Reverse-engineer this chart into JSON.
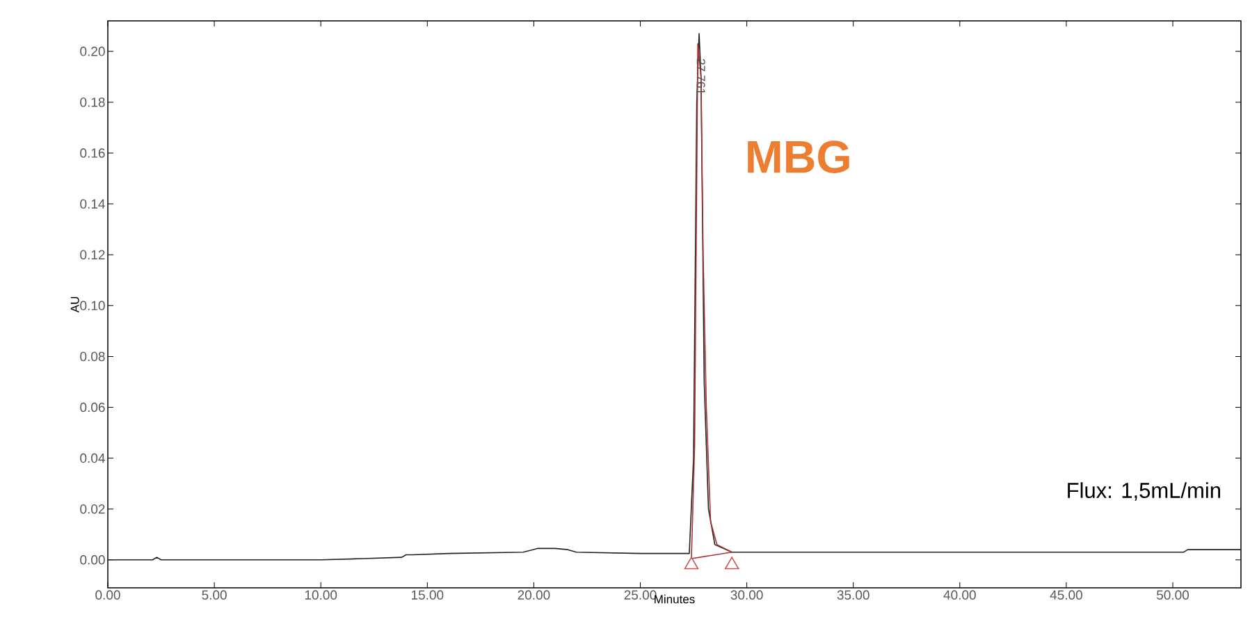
{
  "chart_data": {
    "type": "line",
    "xlabel": "Minutes",
    "ylabel": "AU",
    "xlim": [
      0,
      53.2
    ],
    "ylim": [
      -0.011,
      0.212
    ],
    "xticks": [
      {
        "value": 0,
        "label": "0.00"
      },
      {
        "value": 5,
        "label": "5.00"
      },
      {
        "value": 10,
        "label": "10.00"
      },
      {
        "value": 15,
        "label": "15.00"
      },
      {
        "value": 20,
        "label": "20.00"
      },
      {
        "value": 25,
        "label": "25.00"
      },
      {
        "value": 30,
        "label": "30.00"
      },
      {
        "value": 35,
        "label": "35.00"
      },
      {
        "value": 40,
        "label": "40.00"
      },
      {
        "value": 45,
        "label": "45.00"
      },
      {
        "value": 50,
        "label": "50.00"
      }
    ],
    "yticks": [
      {
        "value": 0,
        "label": "0.00"
      },
      {
        "value": 0.02,
        "label": "0.02"
      },
      {
        "value": 0.04,
        "label": "0.04"
      },
      {
        "value": 0.06,
        "label": "0.06"
      },
      {
        "value": 0.08,
        "label": "0.08"
      },
      {
        "value": 0.1,
        "label": "0.10"
      },
      {
        "value": 0.12,
        "label": "0.12"
      },
      {
        "value": 0.14,
        "label": "0.14"
      },
      {
        "value": 0.16,
        "label": "0.16"
      },
      {
        "value": 0.18,
        "label": "0.18"
      },
      {
        "value": 0.2,
        "label": "0.20"
      }
    ],
    "series": [
      {
        "color": "#222222",
        "x": [
          0,
          2.1,
          2.3,
          2.5,
          5,
          8,
          10,
          12,
          13.8,
          14,
          14.3,
          16,
          19.5,
          20.2,
          21,
          21.6,
          22,
          25,
          27.3,
          27.5,
          27.65,
          27.76,
          27.85,
          28.0,
          28.2,
          28.5,
          29.3,
          35,
          45,
          50.5,
          50.7,
          53.2
        ],
        "values": [
          0,
          0,
          0.001,
          0,
          0,
          0,
          0,
          0.0005,
          0.001,
          0.002,
          0.002,
          0.0025,
          0.003,
          0.0045,
          0.0045,
          0.004,
          0.003,
          0.0025,
          0.0025,
          0.04,
          0.18,
          0.207,
          0.19,
          0.07,
          0.02,
          0.006,
          0.003,
          0.003,
          0.003,
          0.003,
          0.004,
          0.004
        ]
      },
      {
        "color": "#a83232",
        "x": [
          27.4,
          27.55,
          27.7,
          27.85,
          27.95,
          28.1,
          28.3,
          28.6,
          29.3
        ],
        "values": [
          0.0005,
          0.045,
          0.203,
          0.19,
          0.12,
          0.06,
          0.015,
          0.006,
          0.003
        ]
      },
      {
        "color": "#a83232",
        "x": [
          27.4,
          29.3
        ],
        "values": [
          0.0005,
          0.003
        ]
      },
      {
        "type": "scatter",
        "marker": "triangle",
        "color": "#c85050",
        "x": [
          27.4,
          29.3
        ],
        "values": [
          -0.002,
          -0.002
        ]
      }
    ],
    "annotations": [
      "27.761",
      "MBG",
      "Flux: 1,5mL/min"
    ]
  }
}
